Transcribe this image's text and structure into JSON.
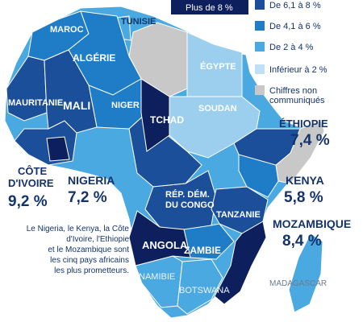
{
  "legend": {
    "items": [
      {
        "label": "Plus de 8 %",
        "color": "#0d1f5c"
      },
      {
        "label": "De 6,1 à 8 %",
        "color": "#1c4f9a"
      },
      {
        "label": "De 4,1 à 6 %",
        "color": "#1f7cc6"
      },
      {
        "label": "De 2 à 4 %",
        "color": "#4aa9e0"
      },
      {
        "label": "Inférieur à 2 %",
        "color": "#bfe0f5"
      },
      {
        "label": "Chiffres non communiqués",
        "color": "#c8c8c8"
      }
    ]
  },
  "regions": {
    "maroc": "MAROC",
    "tunisie": "TUNISIE",
    "algerie": "ALGÉRIE",
    "egypte": "ÉGYPTE",
    "mauritanie": "MAURITANIE",
    "mali": "MALI",
    "niger": "NIGER",
    "tchad": "TCHAD",
    "soudan": "SOUDAN",
    "rdc_1": "RÉP. DÉM.",
    "rdc_2": "DU CONGO",
    "tanzanie": "TANZANIE",
    "angola": "ANGOLA",
    "zambie": "ZAMBIE",
    "namibie": "NAMIBIE",
    "botswana": "BOTSWANA",
    "madagascar": "MADAGASCAR"
  },
  "highlights": {
    "ethiopie": {
      "name": "ÉTHIOPIE",
      "value": "7,4 %"
    },
    "kenya": {
      "name": "KENYA",
      "value": "5,8 %"
    },
    "mozambique": {
      "name": "MOZAMBIQUE",
      "value": "8,4 %"
    },
    "nigeria": {
      "name": "NIGERIA",
      "value": "7,2 %"
    },
    "cote_ivoire": {
      "name_1": "CÔTE",
      "name_2": "D'IVOIRE",
      "value": "9,2 %"
    }
  },
  "note": {
    "line_1": "Le Nigeria, le Kenya, la Côte",
    "line_2": "d'Ivoire, l'Ethiopie",
    "line_3": "et le Mozambique sont",
    "line_4": "les cinq pays africains",
    "line_5": "les plus prometteurs."
  }
}
